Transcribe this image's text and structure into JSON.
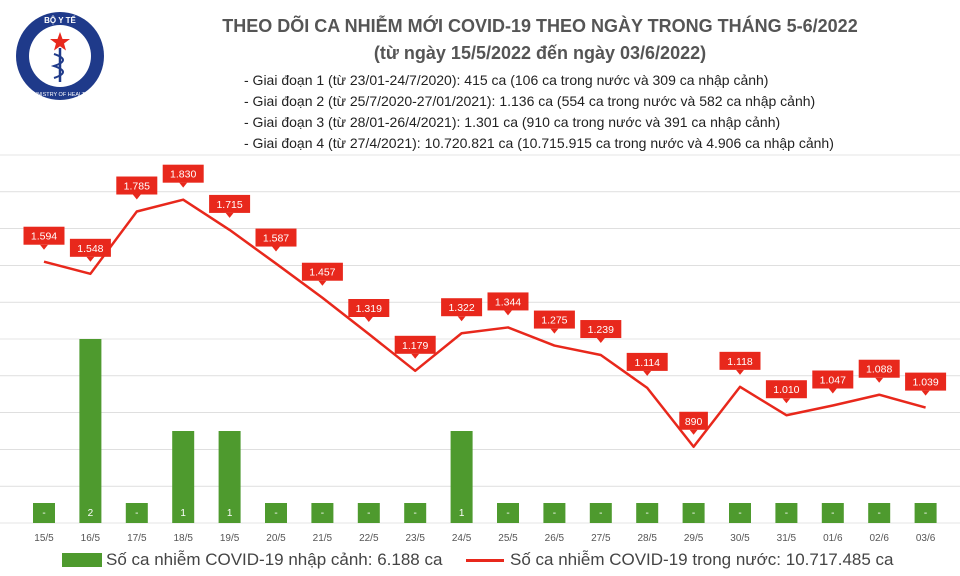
{
  "header": {
    "title_line1": "THEO DÕI CA NHIỄM MỚI COVID-19 THEO NGÀY TRONG THÁNG 5-6/2022",
    "title_line2": "(từ ngày 15/5/2022 đến ngày 03/6/2022)",
    "logo": {
      "icon": "ministry-of-health-emblem",
      "text_top": "BỘ Y TẾ",
      "text_bottom": "MINISTRY OF HEALTH"
    },
    "stages": [
      "- Giai đoạn 1 (từ 23/01-24/7/2020): 415 ca (106 ca trong nước và 309 ca nhập cảnh)",
      "- Giai đoạn 2 (từ 25/7/2020-27/01/2021): 1.136 ca (554 ca trong nước và 582 ca nhập cảnh)",
      "- Giai đoạn 3 (từ 28/01-26/4/2021): 1.301 ca (910 ca trong nước và 391 ca nhập cảnh)",
      "- Giai đoạn 4 (từ 27/4/2021): 10.720.821 ca (10.715.915 ca trong nước và 4.906 ca nhập cảnh)"
    ]
  },
  "colors": {
    "bar": "#4e9a2e",
    "line": "#e8281c",
    "label_bg": "#e8281c",
    "grid": "#cccccc"
  },
  "chart_data": {
    "type": "bar",
    "categories": [
      "15/5",
      "16/5",
      "17/5",
      "18/5",
      "19/5",
      "20/5",
      "21/5",
      "22/5",
      "23/5",
      "24/5",
      "25/5",
      "26/5",
      "27/5",
      "28/5",
      "29/5",
      "30/5",
      "31/5",
      "01/6",
      "02/6",
      "03/6"
    ],
    "series": [
      {
        "name": "Số ca nhiễm COVID-19 nhập cảnh: 6.188 ca",
        "type": "bar",
        "axis": "left",
        "values": [
          0,
          2,
          0,
          1,
          1,
          0,
          0,
          0,
          0,
          1,
          0,
          0,
          0,
          0,
          0,
          0,
          0,
          0,
          0,
          0
        ],
        "labels": [
          "-",
          "2",
          "-",
          "1",
          "1",
          "-",
          "-",
          "-",
          "-",
          "1",
          "-",
          "-",
          "-",
          "-",
          "-",
          "-",
          "-",
          "-",
          "-",
          "-"
        ]
      },
      {
        "name": "Số ca nhiễm COVID-19 trong nước: 10.717.485 ca",
        "type": "line",
        "axis": "right",
        "values": [
          1594,
          1548,
          1785,
          1830,
          1715,
          1587,
          1457,
          1319,
          1179,
          1322,
          1344,
          1275,
          1239,
          1114,
          890,
          1118,
          1010,
          1047,
          1088,
          1039
        ],
        "labels": [
          "1.594",
          "1.548",
          "1.785",
          "1.830",
          "1.715",
          "1.587",
          "1.457",
          "1.319",
          "1.179",
          "1.322",
          "1.344",
          "1.275",
          "1.239",
          "1.114",
          "890",
          "1.118",
          "1.010",
          "1.047",
          "1.088",
          "1.039"
        ]
      }
    ],
    "left_axis": {
      "ylim": [
        0,
        4
      ]
    },
    "right_axis": {
      "ylim": [
        600,
        2000
      ]
    },
    "grid": true,
    "legend": "bottom"
  }
}
